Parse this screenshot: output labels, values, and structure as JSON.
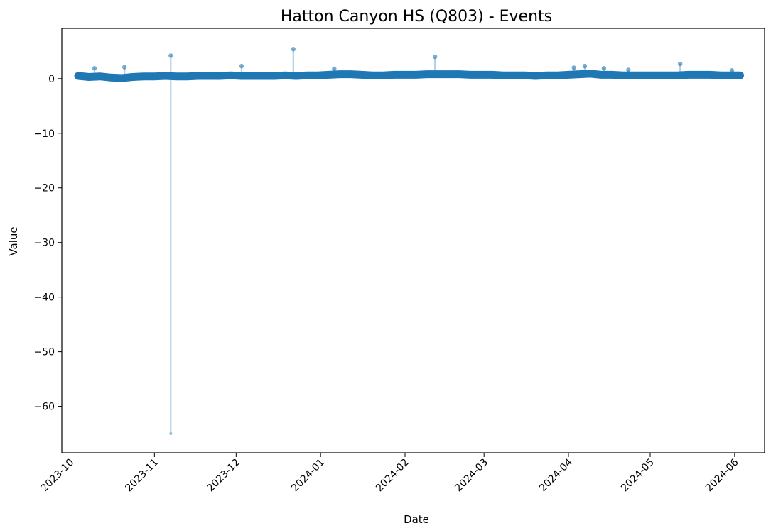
{
  "chart_data": {
    "type": "line",
    "title": "Hatton Canyon HS (Q803) - Events",
    "xlabel": "Date",
    "ylabel": "Value",
    "x_axis_type": "date",
    "xlim": [
      "2023-09-28",
      "2024-06-12"
    ],
    "ylim": [
      -68.5,
      9.2
    ],
    "grid": false,
    "legend": "none",
    "color": "#1f77b4",
    "x_ticks": [
      "2023-10",
      "2023-11",
      "2023-12",
      "2024-01",
      "2024-02",
      "2024-03",
      "2024-04",
      "2024-05",
      "2024-06"
    ],
    "y_ticks": [
      0,
      -10,
      -20,
      -30,
      -40,
      -50,
      -60
    ],
    "y_tick_labels": [
      "0",
      "−10",
      "−20",
      "−30",
      "−40",
      "−50",
      "−60"
    ],
    "series": [
      {
        "x": [
          "2023-10-04",
          "2023-10-08",
          "2023-10-12",
          "2023-10-16",
          "2023-10-20",
          "2023-10-24",
          "2023-10-28",
          "2023-11-01",
          "2023-11-05",
          "2023-11-09",
          "2023-11-13",
          "2023-11-17",
          "2023-11-21",
          "2023-11-25",
          "2023-11-29",
          "2023-12-03",
          "2023-12-07",
          "2023-12-11",
          "2023-12-15",
          "2023-12-19",
          "2023-12-23",
          "2023-12-27",
          "2023-12-31",
          "2024-01-04",
          "2024-01-08",
          "2024-01-12",
          "2024-01-16",
          "2024-01-20",
          "2024-01-24",
          "2024-01-28",
          "2024-02-01",
          "2024-02-05",
          "2024-02-09",
          "2024-02-13",
          "2024-02-17",
          "2024-02-21",
          "2024-02-25",
          "2024-02-29",
          "2024-03-04",
          "2024-03-08",
          "2024-03-12",
          "2024-03-16",
          "2024-03-20",
          "2024-03-24",
          "2024-03-28",
          "2024-04-01",
          "2024-04-05",
          "2024-04-09",
          "2024-04-13",
          "2024-04-17",
          "2024-04-21",
          "2024-04-25",
          "2024-04-29",
          "2024-05-03",
          "2024-05-07",
          "2024-05-11",
          "2024-05-15",
          "2024-05-19",
          "2024-05-23",
          "2024-05-27",
          "2024-05-31",
          "2024-06-03"
        ],
        "values": [
          0.5,
          0.3,
          0.4,
          0.2,
          0.1,
          0.3,
          0.4,
          0.4,
          0.5,
          0.4,
          0.4,
          0.5,
          0.5,
          0.5,
          0.6,
          0.5,
          0.5,
          0.5,
          0.5,
          0.6,
          0.5,
          0.6,
          0.6,
          0.7,
          0.8,
          0.8,
          0.7,
          0.6,
          0.6,
          0.7,
          0.7,
          0.7,
          0.8,
          0.8,
          0.8,
          0.8,
          0.7,
          0.7,
          0.7,
          0.6,
          0.6,
          0.6,
          0.5,
          0.6,
          0.6,
          0.7,
          0.8,
          0.9,
          0.7,
          0.7,
          0.6,
          0.6,
          0.6,
          0.6,
          0.6,
          0.6,
          0.7,
          0.7,
          0.7,
          0.6,
          0.6,
          0.6
        ]
      }
    ],
    "events": [
      {
        "date": "2023-10-10",
        "low": 0.3,
        "high": 1.9
      },
      {
        "date": "2023-10-21",
        "low": 0.3,
        "high": 2.1
      },
      {
        "date": "2023-11-07",
        "low": -65.0,
        "high": 4.2
      },
      {
        "date": "2023-12-03",
        "low": 0.5,
        "high": 2.3
      },
      {
        "date": "2023-12-22",
        "low": 0.6,
        "high": 5.4
      },
      {
        "date": "2024-01-06",
        "low": 0.7,
        "high": 1.8
      },
      {
        "date": "2024-02-12",
        "low": 0.8,
        "high": 4.0
      },
      {
        "date": "2024-04-03",
        "low": 0.8,
        "high": 2.0
      },
      {
        "date": "2024-04-07",
        "low": 0.8,
        "high": 2.3
      },
      {
        "date": "2024-04-14",
        "low": 0.7,
        "high": 1.9
      },
      {
        "date": "2024-04-23",
        "low": 0.6,
        "high": 1.6
      },
      {
        "date": "2024-05-12",
        "low": 0.6,
        "high": 2.7
      },
      {
        "date": "2024-05-31",
        "low": 0.6,
        "high": 1.5
      }
    ]
  }
}
